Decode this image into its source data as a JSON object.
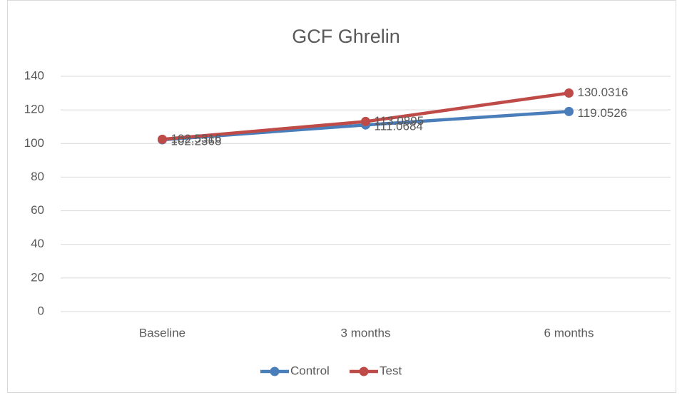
{
  "chart_data": {
    "type": "line",
    "title": "GCF Ghrelin",
    "categories": [
      "Baseline",
      "3 months",
      "6 months"
    ],
    "series": [
      {
        "name": "Control",
        "color": "#4a7ebb",
        "values": [
          102.2368,
          111.0684,
          119.0526
        ]
      },
      {
        "name": "Test",
        "color": "#be4b48",
        "values": [
          102.5316,
          113.0895,
          130.0316
        ]
      }
    ],
    "ylim": [
      0,
      140
    ],
    "yticks": [
      0,
      20,
      40,
      60,
      80,
      100,
      120,
      140
    ],
    "grid": true,
    "legend": "bottom"
  }
}
